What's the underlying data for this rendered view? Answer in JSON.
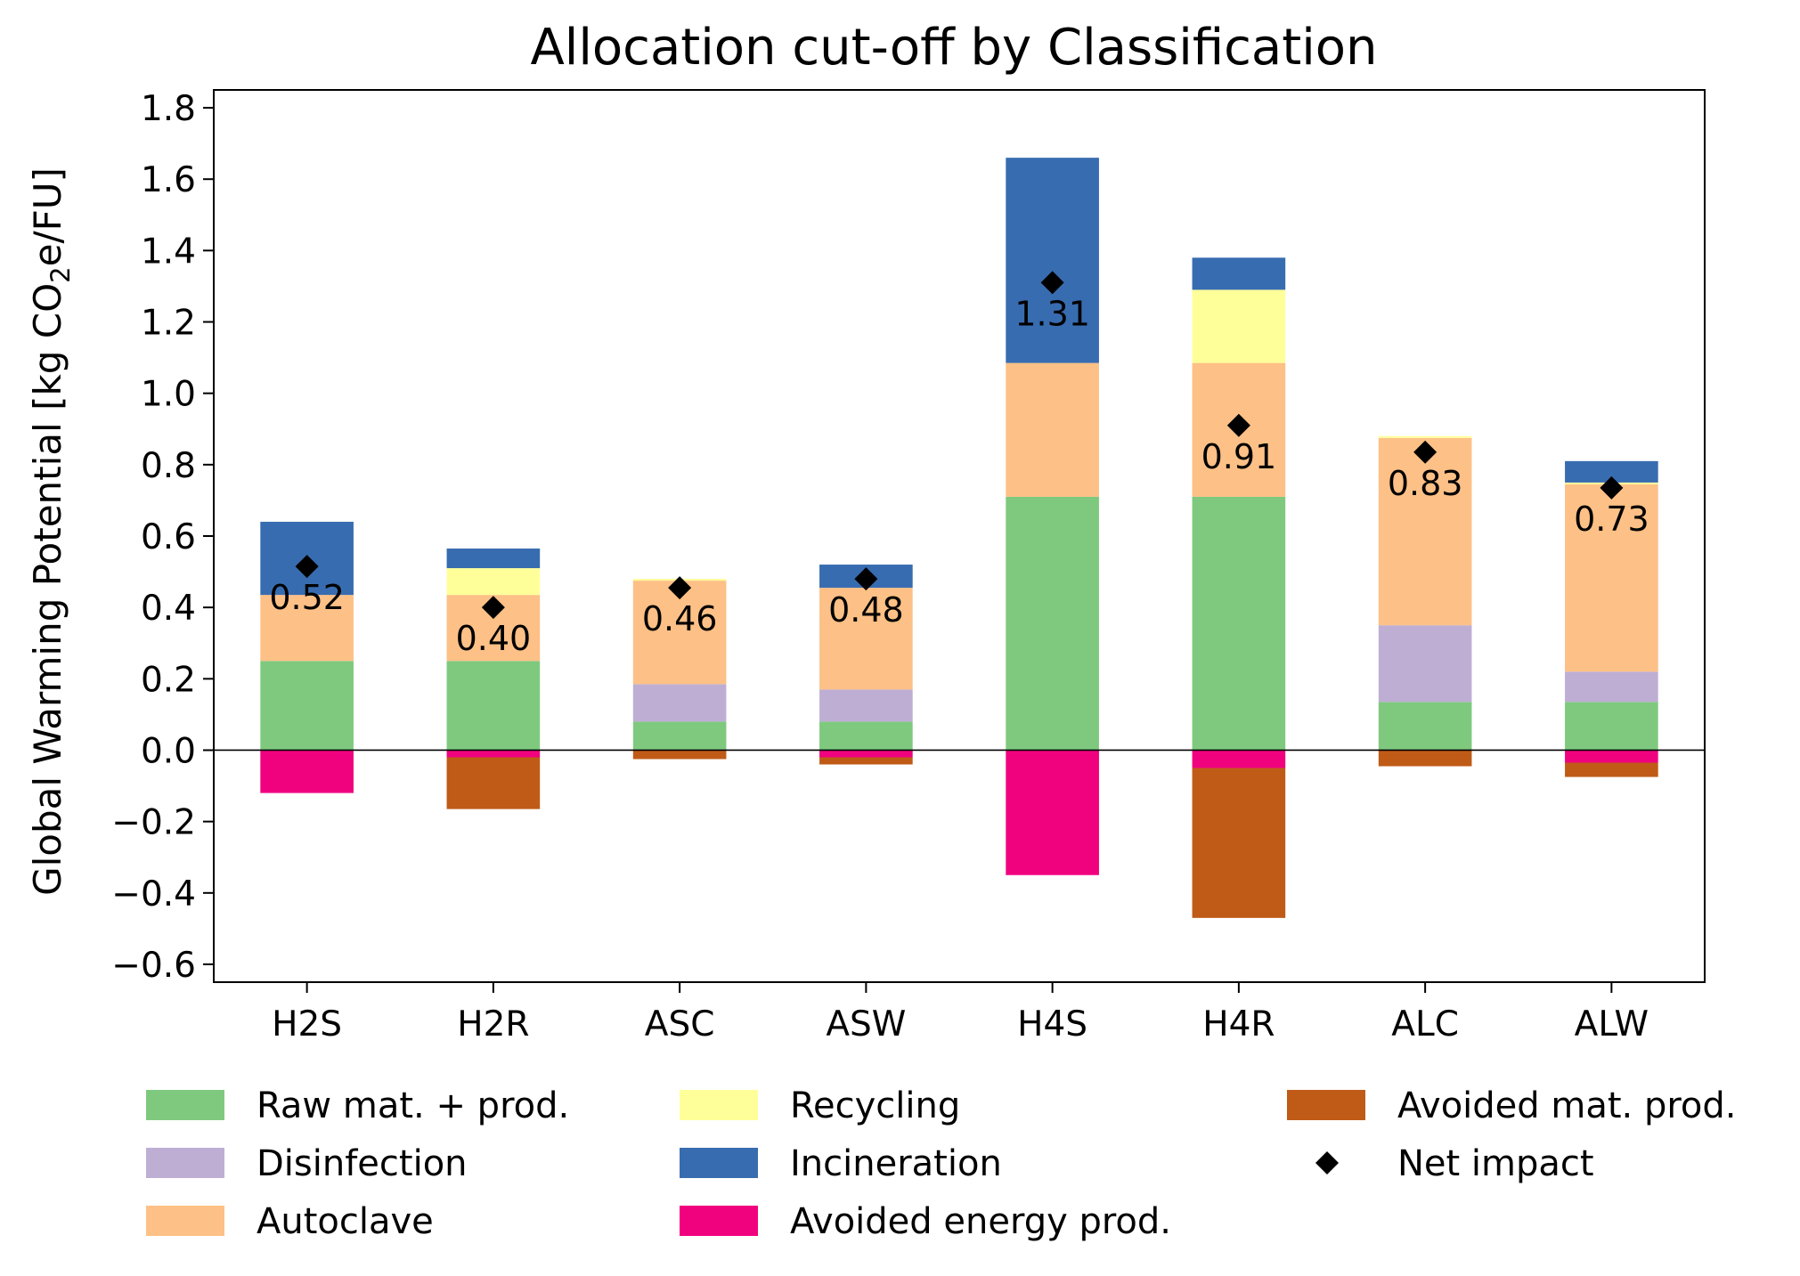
{
  "chart_data": {
    "type": "bar",
    "stacked": true,
    "title": "Allocation cut-off by Classification",
    "ylabel_parts": [
      "Global Warming Potential [kg CO",
      "2",
      "e/FU]"
    ],
    "xlabel": "",
    "ylim": [
      -0.65,
      1.85
    ],
    "yticks": [
      -0.6,
      -0.4,
      -0.2,
      0.0,
      0.2,
      0.4,
      0.6,
      0.8,
      1.0,
      1.2,
      1.4,
      1.6,
      1.8
    ],
    "ytick_labels": [
      "−0.6",
      "−0.4",
      "−0.2",
      "0.0",
      "0.2",
      "0.4",
      "0.6",
      "0.8",
      "1.0",
      "1.2",
      "1.4",
      "1.6",
      "1.8"
    ],
    "categories": [
      "H2S",
      "H2R",
      "ASC",
      "ASW",
      "H4S",
      "H4R",
      "ALC",
      "ALW"
    ],
    "positive_series": [
      {
        "name": "Raw mat. + prod.",
        "color": "#7fc97f",
        "values": [
          0.25,
          0.25,
          0.08,
          0.08,
          0.71,
          0.71,
          0.135,
          0.135
        ]
      },
      {
        "name": "Disinfection",
        "color": "#beaed4",
        "values": [
          0.0,
          0.0,
          0.105,
          0.09,
          0.0,
          0.0,
          0.215,
          0.085
        ]
      },
      {
        "name": "Autoclave",
        "color": "#fdc086",
        "values": [
          0.185,
          0.185,
          0.29,
          0.285,
          0.375,
          0.375,
          0.525,
          0.525
        ]
      },
      {
        "name": "Recycling",
        "color": "#ffff99",
        "values": [
          0.0,
          0.075,
          0.005,
          0.0,
          0.0,
          0.205,
          0.005,
          0.005
        ]
      },
      {
        "name": "Incineration",
        "color": "#386cb0",
        "values": [
          0.205,
          0.055,
          0.0,
          0.065,
          0.575,
          0.09,
          0.0,
          0.06
        ]
      }
    ],
    "negative_series": [
      {
        "name": "Avoided energy prod.",
        "color": "#f0027f",
        "values": [
          -0.12,
          -0.02,
          0.0,
          -0.02,
          -0.35,
          -0.05,
          0.0,
          -0.035
        ]
      },
      {
        "name": "Avoided mat. prod.",
        "color": "#bf5b17",
        "values": [
          0.0,
          -0.145,
          -0.025,
          -0.02,
          0.0,
          -0.42,
          -0.045,
          -0.04
        ]
      }
    ],
    "net_impact": {
      "name": "Net impact",
      "color": "#000000",
      "values": [
        0.515,
        0.4,
        0.455,
        0.48,
        1.31,
        0.91,
        0.835,
        0.735
      ]
    },
    "net_labels": [
      "0.52",
      "0.40",
      "0.46",
      "0.48",
      "1.31",
      "0.91",
      "0.83",
      "0.73"
    ],
    "legend": {
      "placement": "bottom",
      "entries": [
        {
          "name": "Raw mat. + prod.",
          "color": "#7fc97f",
          "kind": "patch"
        },
        {
          "name": "Disinfection",
          "color": "#beaed4",
          "kind": "patch"
        },
        {
          "name": "Autoclave",
          "color": "#fdc086",
          "kind": "patch"
        },
        {
          "name": "Recycling",
          "color": "#ffff99",
          "kind": "patch"
        },
        {
          "name": "Incineration",
          "color": "#386cb0",
          "kind": "patch"
        },
        {
          "name": "Avoided energy prod.",
          "color": "#f0027f",
          "kind": "patch"
        },
        {
          "name": "Avoided mat. prod.",
          "color": "#bf5b17",
          "kind": "patch"
        },
        {
          "name": "Net impact",
          "color": "#000000",
          "kind": "diamond"
        }
      ]
    },
    "grid": false,
    "zero_line": true
  }
}
